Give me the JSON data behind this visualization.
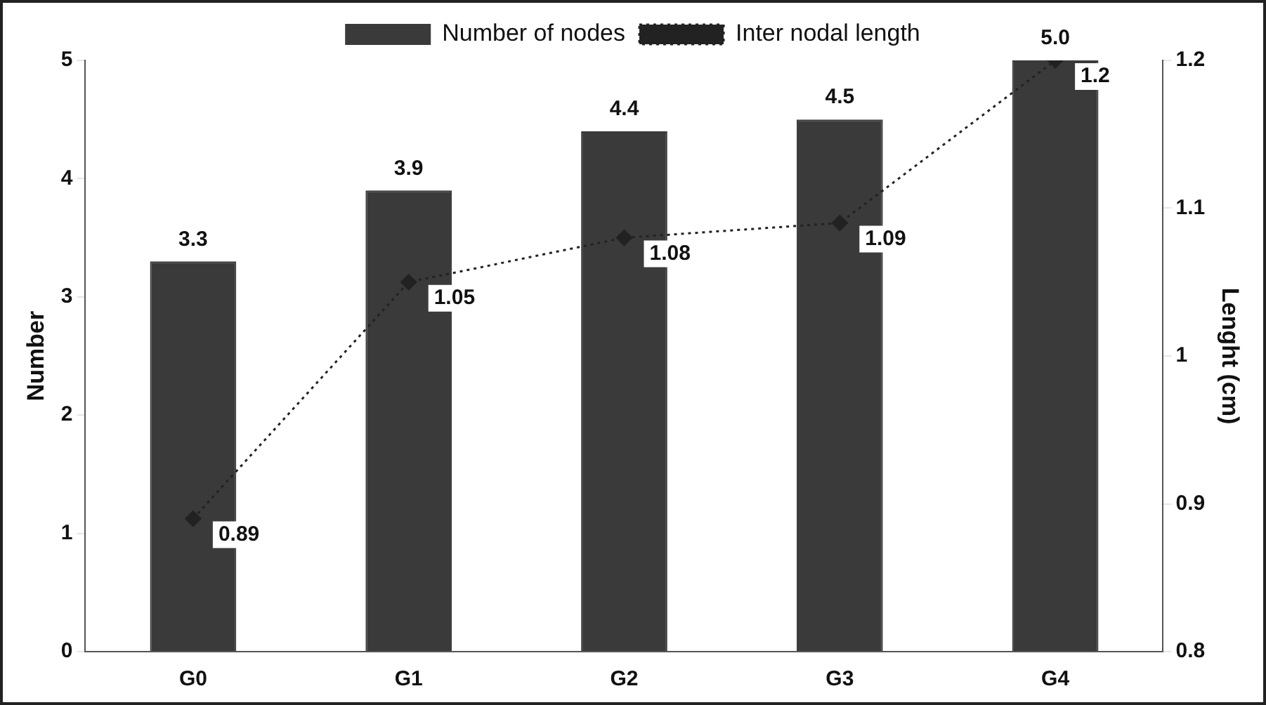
{
  "chart_data": {
    "type": "bar",
    "ylabel": "Number",
    "y2label": "Lenght (cm)",
    "categories": [
      "G0",
      "G1",
      "G2",
      "G3",
      "G4"
    ],
    "series": [
      {
        "name": "Number of nodes",
        "color": "#3a3a3a",
        "values": [
          3.3,
          3.9,
          4.4,
          4.5,
          5.0
        ],
        "value_labels": [
          "3.3",
          "3.9",
          "4.4",
          "4.5",
          "5.0"
        ]
      },
      {
        "name": "Inter nodal length",
        "type": "line",
        "axis": "y2",
        "color": "#222222",
        "marker": "diamond",
        "line_style": "dotted",
        "values": [
          0.89,
          1.05,
          1.08,
          1.09,
          1.2
        ],
        "value_labels": [
          "0.89",
          "1.05",
          "1.08",
          "1.09",
          "1.2"
        ]
      }
    ],
    "ylim": [
      0,
      5
    ],
    "yticks": [
      0,
      1,
      2,
      3,
      4,
      5
    ],
    "y2lim": [
      0.8,
      1.2
    ],
    "y2ticks": [
      0.8,
      0.9,
      1,
      1.1,
      1.2
    ],
    "grid": false,
    "legend": "top"
  }
}
